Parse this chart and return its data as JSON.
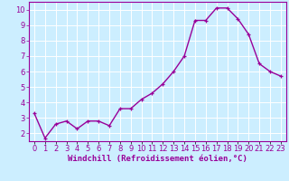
{
  "x": [
    0,
    1,
    2,
    3,
    4,
    5,
    6,
    7,
    8,
    9,
    10,
    11,
    12,
    13,
    14,
    15,
    16,
    17,
    18,
    19,
    20,
    21,
    22,
    23
  ],
  "y": [
    3.3,
    1.7,
    2.6,
    2.8,
    2.3,
    2.8,
    2.8,
    2.5,
    3.6,
    3.6,
    4.2,
    4.6,
    5.2,
    6.0,
    7.0,
    9.3,
    9.3,
    10.1,
    10.1,
    9.4,
    8.4,
    6.5,
    6.0,
    5.7
  ],
  "line_color": "#990099",
  "marker": "+",
  "marker_size": 3.5,
  "marker_linewidth": 0.9,
  "background_color": "#cceeff",
  "grid_color": "#ffffff",
  "xlabel": "Windchill (Refroidissement éolien,°C)",
  "xlabel_color": "#990099",
  "xlabel_fontsize": 6.5,
  "tick_color": "#990099",
  "tick_fontsize": 6.0,
  "ylim": [
    1.5,
    10.5
  ],
  "xlim": [
    -0.5,
    23.5
  ],
  "yticks": [
    2,
    3,
    4,
    5,
    6,
    7,
    8,
    9,
    10
  ],
  "xtick_labels": [
    "0",
    "1",
    "2",
    "3",
    "4",
    "5",
    "6",
    "7",
    "8",
    "9",
    "10",
    "11",
    "12",
    "13",
    "14",
    "15",
    "16",
    "17",
    "18",
    "19",
    "20",
    "21",
    "22",
    "23"
  ],
  "spine_color": "#990099",
  "line_width": 1.0
}
